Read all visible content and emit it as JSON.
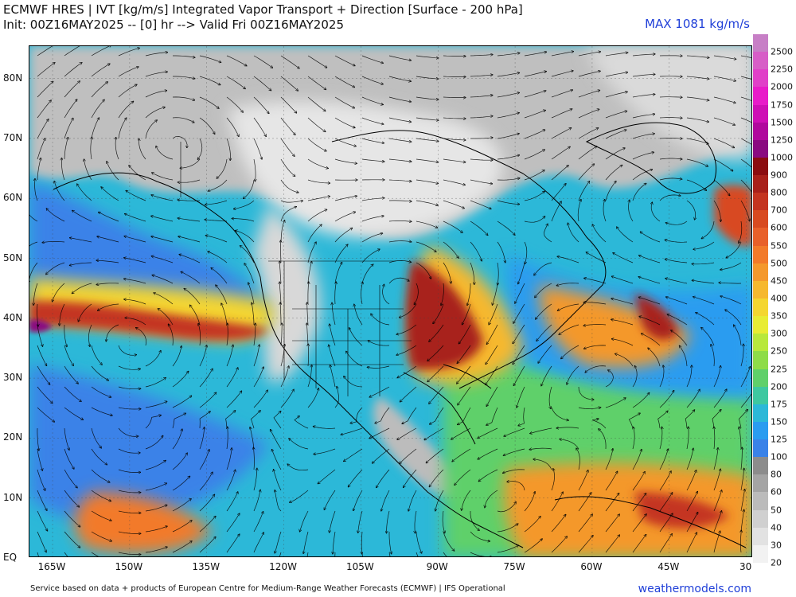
{
  "header": {
    "title_line1": "ECMWF HRES | IVT [kg/m/s] Integrated Vapor Transport + Direction [Surface - 200 hPa]",
    "title_line2": "Init: 00Z16MAY2025 -- [0] hr --> Valid Fri 00Z16MAY2025",
    "max_label": "MAX 1081 kg/m/s"
  },
  "axes": {
    "lat_labels": [
      "80N",
      "70N",
      "60N",
      "50N",
      "40N",
      "30N",
      "20N",
      "10N",
      "EQ"
    ],
    "lat_values": [
      80,
      70,
      60,
      50,
      40,
      30,
      20,
      10,
      0
    ],
    "lon_labels": [
      "165W",
      "150W",
      "135W",
      "120W",
      "105W",
      "90W",
      "75W",
      "60W",
      "45W",
      "30"
    ],
    "lon_values": [
      -165,
      -150,
      -135,
      -120,
      -105,
      -90,
      -75,
      -60,
      -45,
      -30
    ]
  },
  "colorbar": {
    "levels": [
      "2500",
      "2250",
      "2000",
      "1750",
      "1500",
      "1250",
      "1000",
      "900",
      "800",
      "700",
      "600",
      "550",
      "500",
      "450",
      "400",
      "350",
      "300",
      "250",
      "225",
      "200",
      "175",
      "150",
      "125",
      "100",
      "80",
      "60",
      "50",
      "40",
      "30",
      "20"
    ],
    "colors": [
      "#c77fc6",
      "#d75ec7",
      "#e040c8",
      "#e81bc9",
      "#ce0fb5",
      "#b0089d",
      "#8a0a80",
      "#8b0c10",
      "#a8201a",
      "#c43420",
      "#d84a20",
      "#e8602a",
      "#f27a2a",
      "#f4982c",
      "#f6b82e",
      "#f4d630",
      "#e8ec34",
      "#b8e83c",
      "#8edc48",
      "#5fd06a",
      "#3ec8a0",
      "#2cb8d8",
      "#2a9cf0",
      "#3a82e8",
      "#8c8c8c",
      "#a4a4a4",
      "#bbbbbb",
      "#d0d0d0",
      "#e2e2e2",
      "#f2f2f2"
    ]
  },
  "footer": {
    "credit": "Service based on data + products of European Centre for Medium-Range Weather Forecasts (ECMWF) | IFS Operational",
    "brand": "weathermodels.com"
  }
}
